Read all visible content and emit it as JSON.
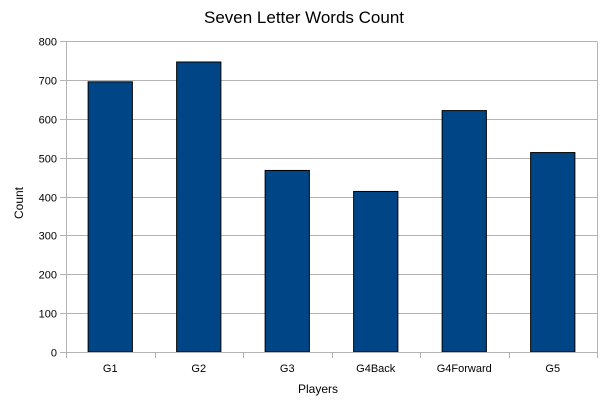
{
  "chart_data": {
    "type": "bar",
    "title": "Seven Letter Words Count",
    "xlabel": "Players",
    "ylabel": "Count",
    "categories": [
      "G1",
      "G2",
      "G3",
      "G4Back",
      "G4Forward",
      "G5"
    ],
    "values": [
      695,
      746,
      467,
      413,
      621,
      513
    ],
    "ylim": [
      0,
      800
    ],
    "yticks": [
      0,
      100,
      200,
      300,
      400,
      500,
      600,
      700,
      800
    ],
    "grid": true,
    "legend": "none",
    "bar_color": "#004586"
  }
}
